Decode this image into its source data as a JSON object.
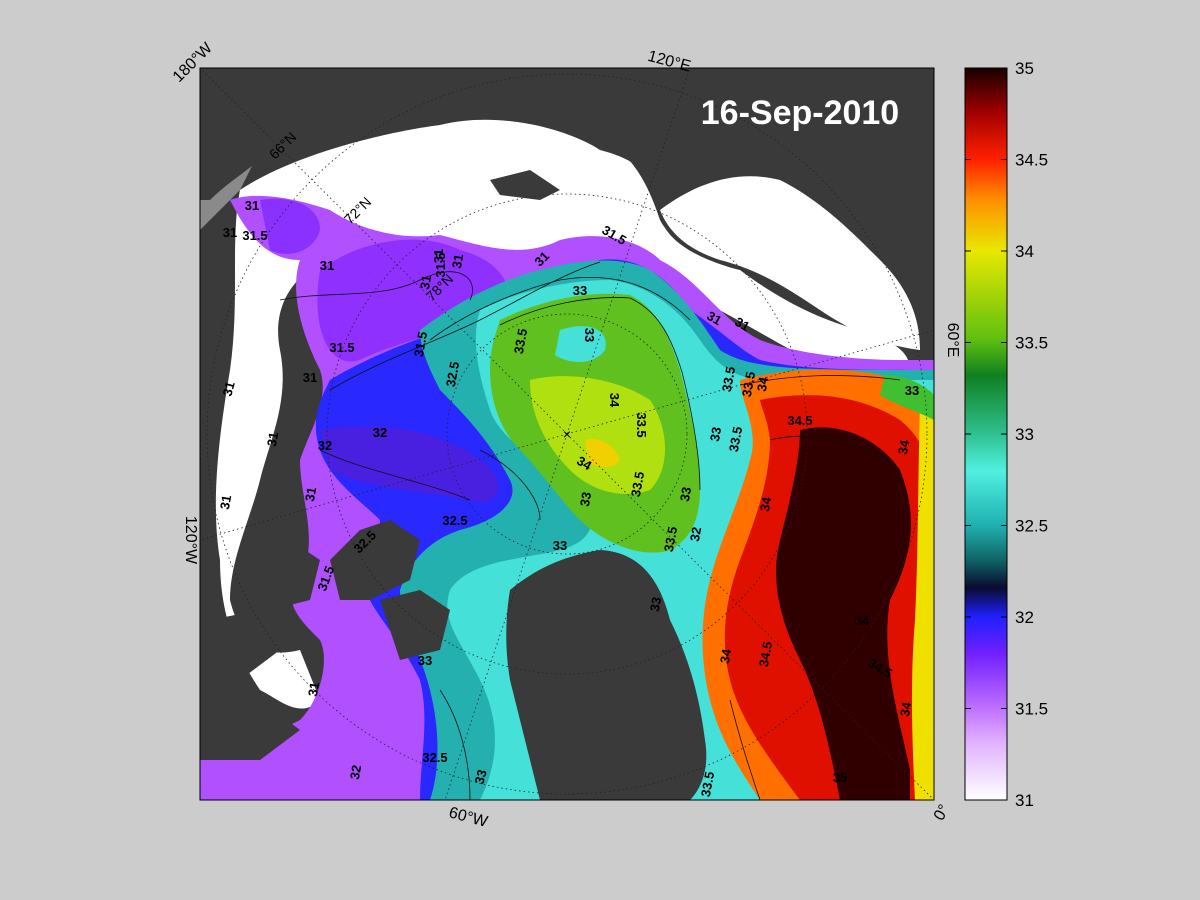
{
  "date_label": "16-Sep-2010",
  "map": {
    "longitude_labels": [
      "180°W",
      "120°E",
      "60°E",
      "0°",
      "60°W",
      "120°W"
    ],
    "latitude_labels": [
      "66°N",
      "72°N",
      "78°N"
    ],
    "center_marker": "×",
    "contour_labels": [
      "31",
      "31",
      "31.5",
      "31",
      "31.5",
      "31",
      "31.5",
      "31",
      "31",
      "31",
      "31",
      "31",
      "31",
      "31",
      "31",
      "31",
      "31.5",
      "31.5",
      "31.5",
      "31",
      "31",
      "32",
      "32",
      "32",
      "32",
      "32.5",
      "32.5",
      "32.5",
      "32.5",
      "33",
      "33",
      "33",
      "33",
      "33",
      "33",
      "33",
      "33",
      "33",
      "33",
      "33.5",
      "33.5",
      "33.5",
      "33.5",
      "33.5",
      "33.5",
      "33.5",
      "34",
      "34",
      "34",
      "34",
      "34",
      "34",
      "34",
      "34",
      "34.5",
      "34.5",
      "34.5",
      "35",
      "33.5"
    ]
  },
  "colorbar": {
    "min": 31,
    "max": 35,
    "ticks": [
      "35",
      "34.5",
      "34",
      "33.5",
      "33",
      "32.5",
      "32",
      "31.5",
      "31"
    ],
    "colors": {
      "c31": "#ffffff",
      "c315": "#c070ff",
      "c32": "#3020ff",
      "c322": "#0a0a40",
      "c325": "#20a0a0",
      "c33": "#40e8d8",
      "c335": "#20a020",
      "c34": "#e8e800",
      "c345": "#ff2000",
      "c35": "#1a0000"
    }
  },
  "colors": {
    "land": "#3a3a3a",
    "ice": "#ffffff",
    "background": "#cccccc"
  }
}
